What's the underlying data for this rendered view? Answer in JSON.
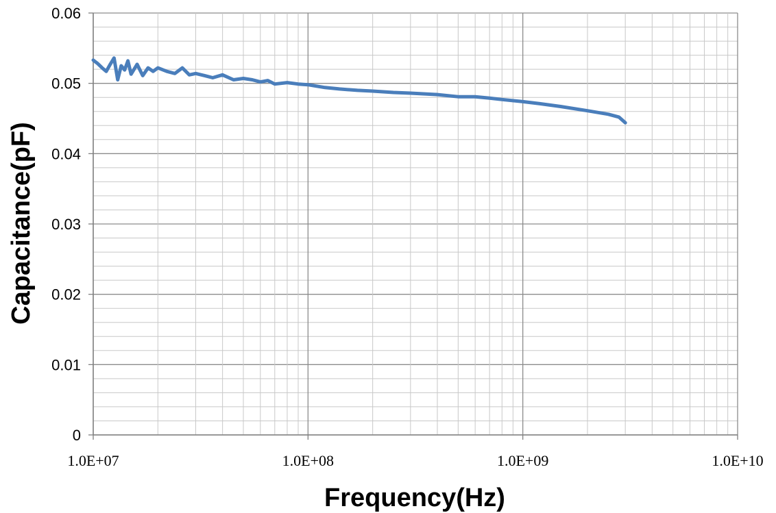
{
  "chart_data": {
    "type": "line",
    "title": "",
    "xlabel": "Frequency(Hz)",
    "ylabel": "Capacitance(pF)",
    "xscale": "log",
    "xlim": [
      10000000,
      10000000000
    ],
    "ylim": [
      0,
      0.06
    ],
    "grid": true,
    "legend": "none",
    "x_tick_labels": [
      "1.0E+07",
      "1.0E+08",
      "1.0E+09",
      "1.0E+10"
    ],
    "y_tick_labels": [
      "0",
      "0.01",
      "0.02",
      "0.03",
      "0.04",
      "0.05",
      "0.06"
    ],
    "series": [
      {
        "color": "#4a7ebb",
        "x": [
          10000000,
          10500000,
          11000000,
          11500000,
          12000000,
          12500000,
          13000000,
          13500000,
          14000000,
          14500000,
          15000000,
          16000000,
          17000000,
          18000000,
          19000000,
          20000000,
          22000000,
          24000000,
          26000000,
          28000000,
          30000000,
          33000000,
          36000000,
          40000000,
          45000000,
          50000000,
          55000000,
          60000000,
          65000000,
          70000000,
          80000000,
          90000000,
          100000000,
          120000000,
          140000000,
          170000000,
          200000000,
          250000000,
          300000000,
          400000000,
          500000000,
          600000000,
          700000000,
          800000000,
          1000000000,
          1200000000,
          1500000000,
          2000000000,
          2500000000,
          2800000000,
          3000000000
        ],
        "y": [
          0.0533,
          0.0528,
          0.0522,
          0.0517,
          0.0527,
          0.0536,
          0.0505,
          0.0525,
          0.0519,
          0.0532,
          0.0513,
          0.0527,
          0.0511,
          0.0522,
          0.0517,
          0.0522,
          0.0517,
          0.0514,
          0.0522,
          0.0512,
          0.0514,
          0.0511,
          0.0508,
          0.0512,
          0.0505,
          0.0507,
          0.0505,
          0.0502,
          0.0504,
          0.0499,
          0.0501,
          0.0499,
          0.0498,
          0.0494,
          0.0492,
          0.049,
          0.0489,
          0.0487,
          0.0486,
          0.0484,
          0.0481,
          0.0481,
          0.0479,
          0.0477,
          0.0474,
          0.0471,
          0.0467,
          0.0461,
          0.0456,
          0.0452,
          0.0444
        ]
      }
    ]
  }
}
